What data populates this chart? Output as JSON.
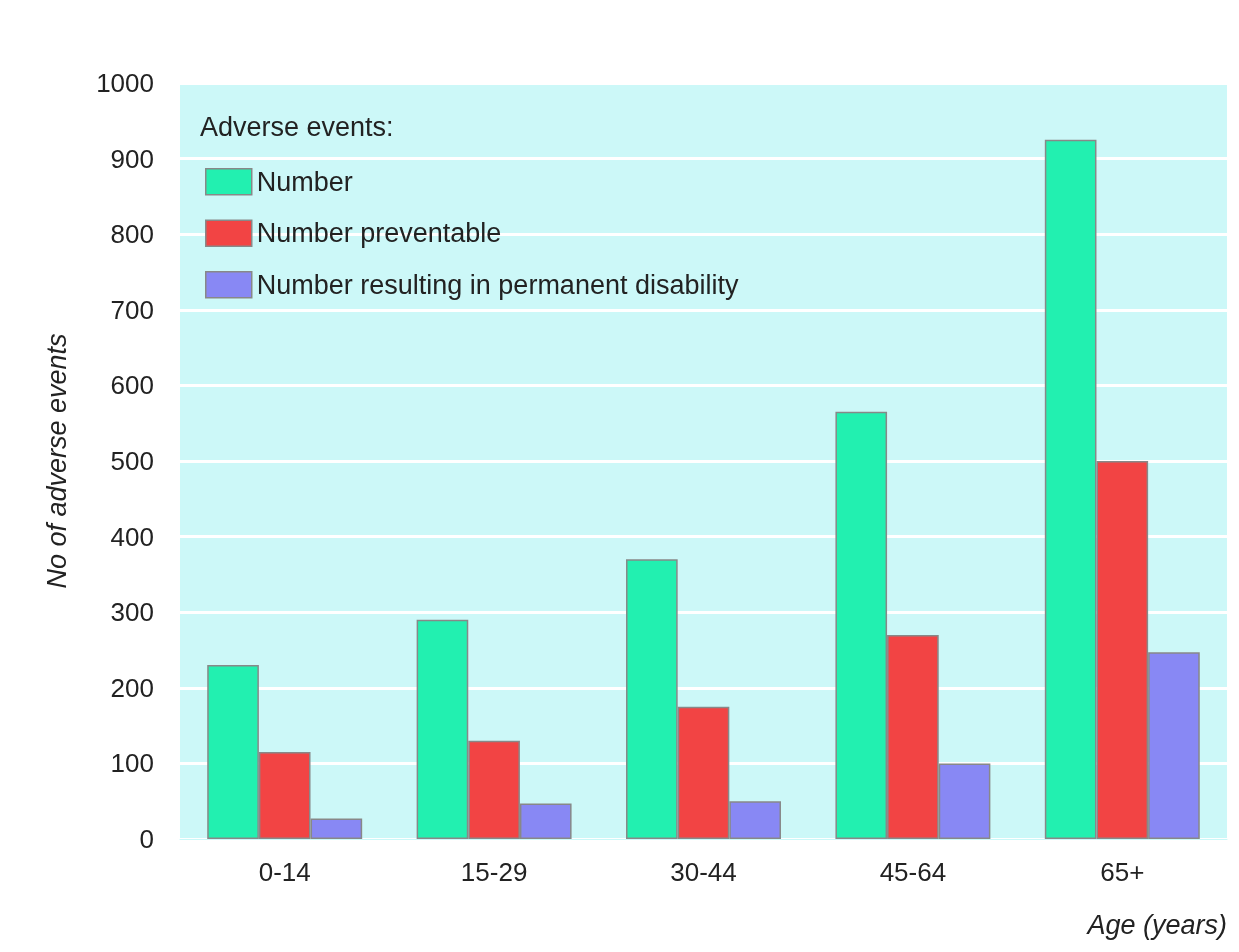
{
  "chart_data": {
    "type": "bar",
    "ylabel": "No of adverse events",
    "xlabel": "Age (years)",
    "legend_title": "Adverse events:",
    "categories": [
      "0-14",
      "15-29",
      "30-44",
      "45-64",
      "65+"
    ],
    "series": [
      {
        "name": "Number",
        "color": "#22f0b0",
        "values": [
          230,
          290,
          370,
          565,
          925
        ]
      },
      {
        "name": "Number preventable",
        "color": "#f24444",
        "values": [
          115,
          130,
          175,
          270,
          500
        ]
      },
      {
        "name": "Number resulting in permanent disability",
        "color": "#8888f4",
        "values": [
          27,
          47,
          50,
          100,
          247
        ]
      }
    ],
    "ylim": [
      0,
      1000
    ],
    "yticks": [
      0,
      100,
      200,
      300,
      400,
      500,
      600,
      700,
      800,
      900,
      1000
    ],
    "grid": "y",
    "legend": "top left"
  }
}
